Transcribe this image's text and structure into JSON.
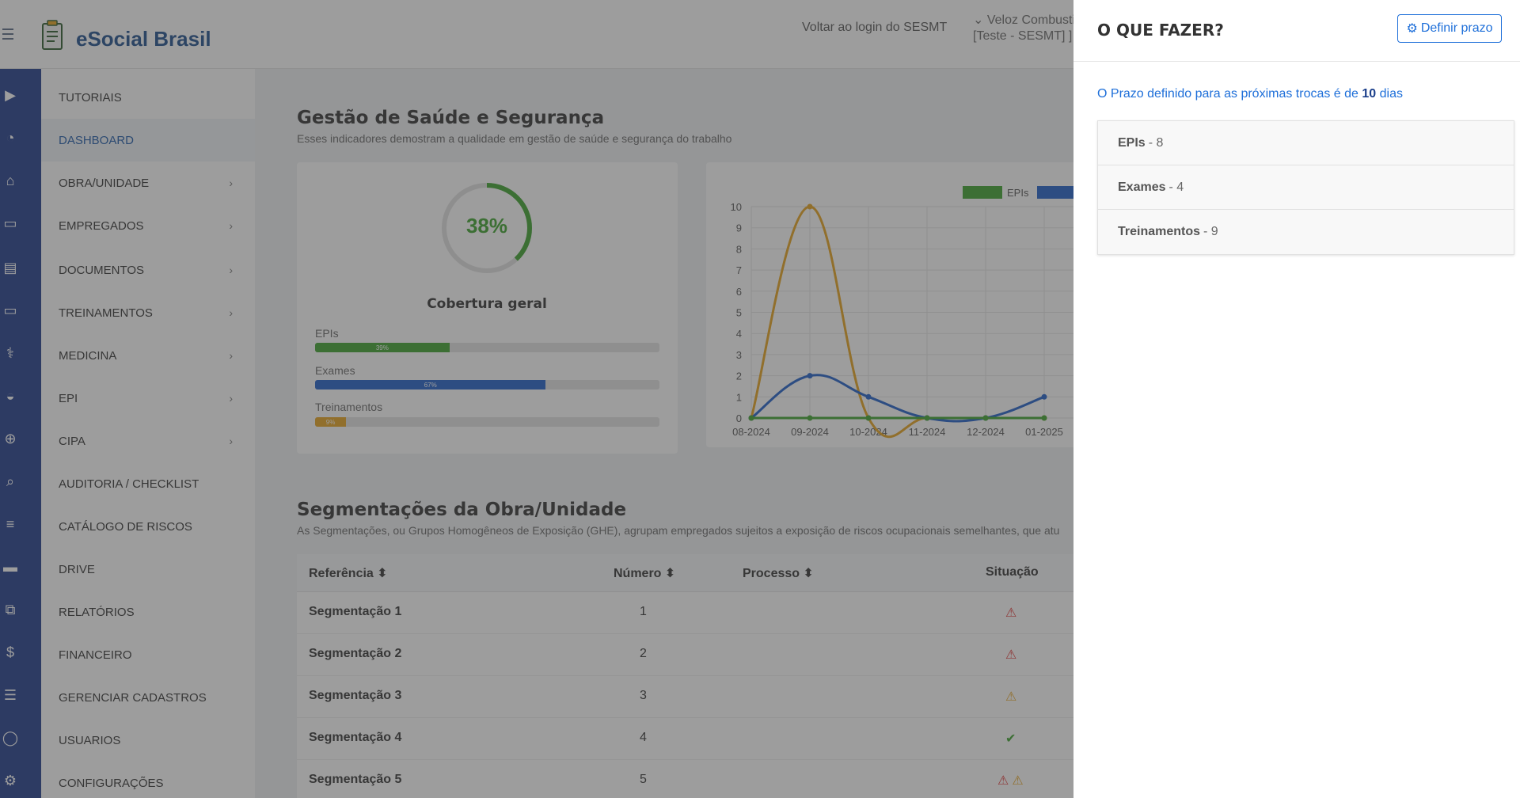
{
  "header": {
    "brand": "eSocial Brasil",
    "back_link": "Voltar ao login do SESMT",
    "company_line1": "⌄ Veloz Combusti",
    "company_line2": "[Teste - SESMT] ]"
  },
  "sidebar": {
    "items": [
      {
        "label": "TUTORIAIS",
        "chevron": false
      },
      {
        "label": "DASHBOARD",
        "chevron": false,
        "active": true
      },
      {
        "label": "OBRA/UNIDADE",
        "chevron": true
      },
      {
        "label": "EMPREGADOS",
        "chevron": true
      },
      {
        "label": "DOCUMENTOS",
        "chevron": true
      },
      {
        "label": "TREINAMENTOS",
        "chevron": true
      },
      {
        "label": "MEDICINA",
        "chevron": true
      },
      {
        "label": "EPI",
        "chevron": true
      },
      {
        "label": "CIPA",
        "chevron": true
      },
      {
        "label": "AUDITORIA / CHECKLIST",
        "chevron": false
      },
      {
        "label": "CATÁLOGO DE RISCOS",
        "chevron": false
      },
      {
        "label": "DRIVE",
        "chevron": false
      },
      {
        "label": "RELATÓRIOS",
        "chevron": false
      },
      {
        "label": "FINANCEIRO",
        "chevron": false
      },
      {
        "label": "GERENCIAR CADASTROS",
        "chevron": false
      },
      {
        "label": "USUARIOS",
        "chevron": false
      },
      {
        "label": "CONFIGURAÇÕES",
        "chevron": false
      }
    ],
    "rail_icons": [
      "video-icon",
      "dashboard-gauge-icon",
      "home-icon",
      "id-card-icon",
      "document-icon",
      "presentation-icon",
      "stethoscope-icon",
      "helmet-icon",
      "plus-circle-icon",
      "search-icon",
      "list-icon",
      "drive-icon",
      "copy-icon",
      "dollar-icon",
      "menu-lines-icon",
      "user-icon",
      "gear-icon"
    ]
  },
  "health": {
    "title": "Gestão de Saúde e Segurança",
    "subtitle": "Esses indicadores demostram a qualidade em gestão de saúde e segurança do trabalho",
    "coverage_percent": "38%",
    "coverage_value": 0.38,
    "coverage_title": "Cobertura geral",
    "bars": [
      {
        "label": "EPIs",
        "value": 39,
        "text": "39%",
        "color": "#3da32c"
      },
      {
        "label": "Exames",
        "value": 67,
        "text": "67%",
        "color": "#1e5ec8"
      },
      {
        "label": "Treinamentos",
        "value": 9,
        "text": "9%",
        "color": "#e6a21c"
      }
    ]
  },
  "chart_data": {
    "type": "line",
    "categories": [
      "08-2024",
      "09-2024",
      "10-2024",
      "11-2024",
      "12-2024",
      "01-2025"
    ],
    "series": [
      {
        "name": "EPIs",
        "color": "#3da32c",
        "values": [
          0,
          0,
          0,
          0,
          0,
          0
        ]
      },
      {
        "name": "",
        "color": "#1e5ec8",
        "values": [
          0,
          2,
          1,
          0,
          0,
          1
        ]
      },
      {
        "name": "",
        "color": "#e6a21c",
        "values": [
          0,
          10,
          0,
          0,
          0,
          0
        ]
      }
    ],
    "yticks": [
      "0",
      "1",
      "2",
      "3",
      "4",
      "5",
      "6",
      "7",
      "8",
      "9",
      "10"
    ],
    "ylim": [
      0,
      10
    ],
    "grid": true,
    "legend": "top"
  },
  "segments": {
    "title": "Segmentações da Obra/Unidade",
    "subtitle": "As Segmentações, ou Grupos Homogêneos de Exposição (GHE), agrupam empregados sujeitos a exposição de riscos ocupacionais semelhantes, que atu",
    "columns": [
      "Referência",
      "Número",
      "Processo",
      "Situação"
    ],
    "rows": [
      {
        "ref": "Segmentação 1",
        "num": "1",
        "status": [
          "warning-red"
        ]
      },
      {
        "ref": "Segmentação 2",
        "num": "2",
        "status": [
          "warning-red"
        ]
      },
      {
        "ref": "Segmentação 3",
        "num": "3",
        "status": [
          "warning-orange"
        ]
      },
      {
        "ref": "Segmentação 4",
        "num": "4",
        "status": [
          "check-green"
        ]
      },
      {
        "ref": "Segmentação 5",
        "num": "5",
        "status": [
          "warning-red",
          "warning-orange"
        ]
      }
    ]
  },
  "drawer": {
    "title": "O QUE FAZER?",
    "define_button": "Definir prazo",
    "prazo_prefix": "O Prazo definido para as próximas trocas é de ",
    "prazo_value": "10",
    "prazo_suffix": " dias",
    "items": [
      {
        "name": "EPIs",
        "count": "- 8"
      },
      {
        "name": "Exames",
        "count": "- 4"
      },
      {
        "name": "Treinamentos",
        "count": "- 9"
      }
    ]
  }
}
